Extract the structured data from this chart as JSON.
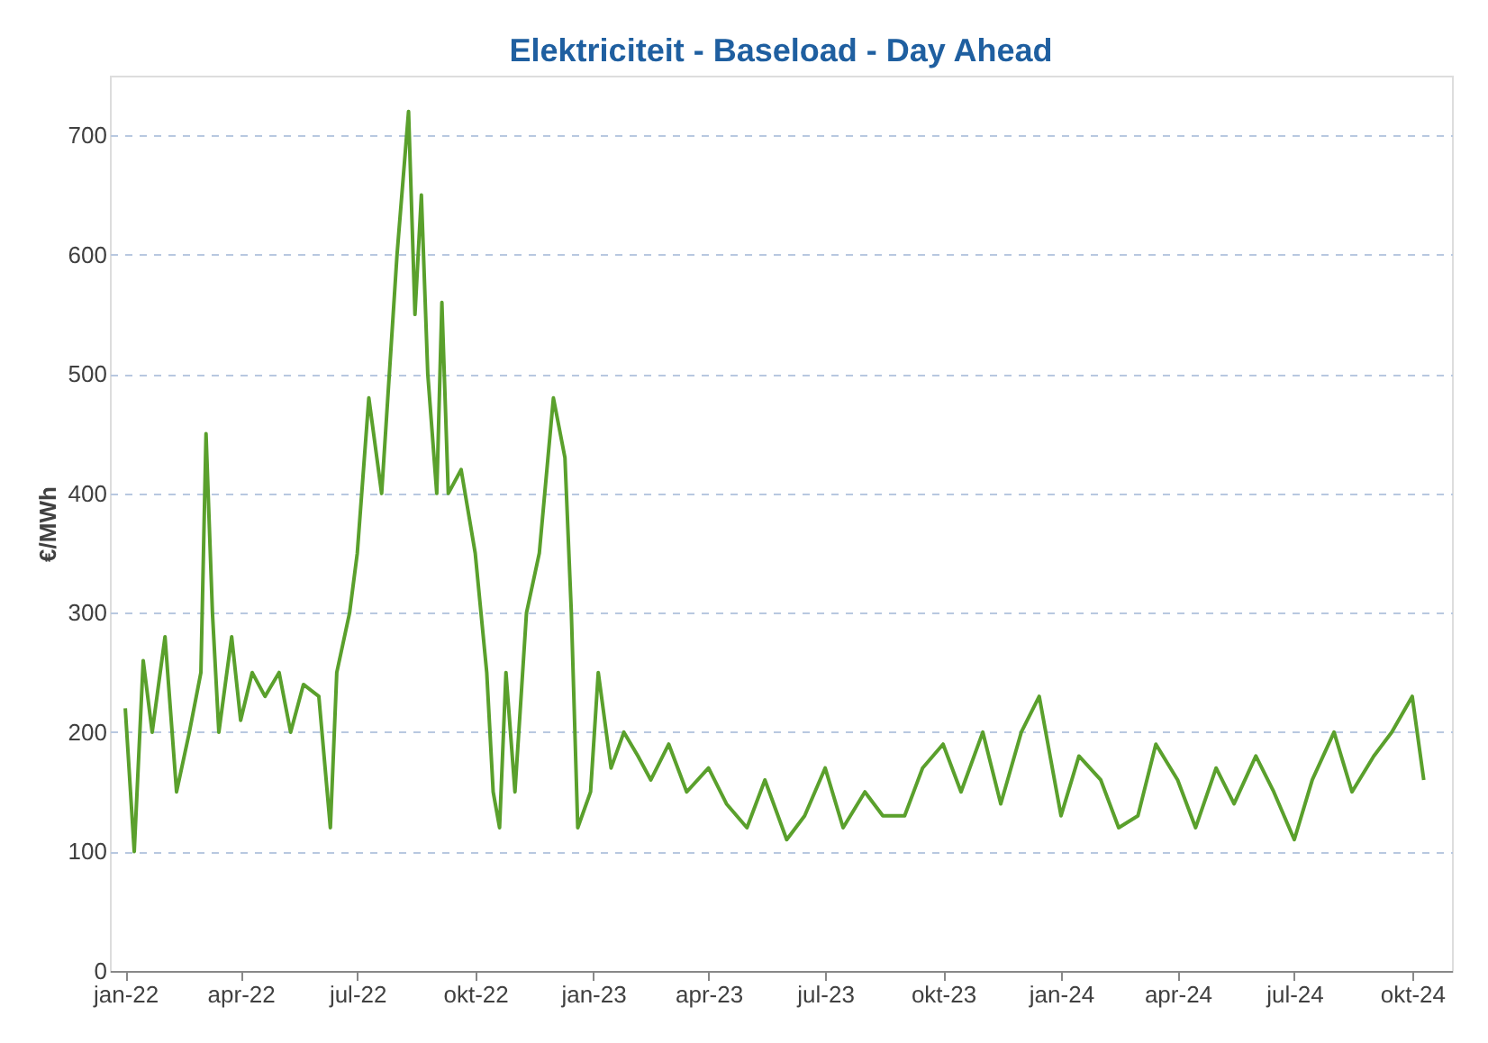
{
  "chart_data": {
    "type": "line",
    "title": "Elektriciteit - Baseload - Day Ahead",
    "ylabel": "€/MWh",
    "grid": "y",
    "marker": "none",
    "line_style": "solid",
    "ylim": [
      0,
      750
    ],
    "yticks": [
      0,
      100,
      200,
      300,
      400,
      500,
      600,
      700
    ],
    "xlim": [
      "2021-12-20",
      "2024-11-01"
    ],
    "xticks": [
      {
        "value": "2022-01-01",
        "label": "jan-22"
      },
      {
        "value": "2022-04-01",
        "label": "apr-22"
      },
      {
        "value": "2022-07-01",
        "label": "jul-22"
      },
      {
        "value": "2022-10-01",
        "label": "okt-22"
      },
      {
        "value": "2023-01-01",
        "label": "jan-23"
      },
      {
        "value": "2023-04-01",
        "label": "apr-23"
      },
      {
        "value": "2023-07-01",
        "label": "jul-23"
      },
      {
        "value": "2023-10-01",
        "label": "okt-23"
      },
      {
        "value": "2024-01-01",
        "label": "jan-24"
      },
      {
        "value": "2024-04-01",
        "label": "apr-24"
      },
      {
        "value": "2024-07-01",
        "label": "jul-24"
      },
      {
        "value": "2024-10-01",
        "label": "okt-24"
      }
    ],
    "x": [
      "2022-01-01",
      "2022-01-08",
      "2022-01-15",
      "2022-01-22",
      "2022-02-01",
      "2022-02-10",
      "2022-02-20",
      "2022-03-01",
      "2022-03-05",
      "2022-03-10",
      "2022-03-15",
      "2022-03-25",
      "2022-04-01",
      "2022-04-10",
      "2022-04-20",
      "2022-05-01",
      "2022-05-10",
      "2022-05-20",
      "2022-06-01",
      "2022-06-10",
      "2022-06-15",
      "2022-06-25",
      "2022-07-01",
      "2022-07-10",
      "2022-07-20",
      "2022-08-01",
      "2022-08-10",
      "2022-08-15",
      "2022-08-20",
      "2022-08-25",
      "2022-09-01",
      "2022-09-05",
      "2022-09-10",
      "2022-09-20",
      "2022-10-01",
      "2022-10-10",
      "2022-10-15",
      "2022-10-20",
      "2022-10-25",
      "2022-11-01",
      "2022-11-10",
      "2022-11-20",
      "2022-12-01",
      "2022-12-10",
      "2022-12-15",
      "2022-12-20",
      "2022-12-30",
      "2023-01-05",
      "2023-01-15",
      "2023-01-25",
      "2023-02-05",
      "2023-02-15",
      "2023-03-01",
      "2023-03-15",
      "2023-04-01",
      "2023-04-15",
      "2023-05-01",
      "2023-05-15",
      "2023-06-01",
      "2023-06-15",
      "2023-07-01",
      "2023-07-15",
      "2023-08-01",
      "2023-08-15",
      "2023-09-01",
      "2023-09-15",
      "2023-10-01",
      "2023-10-15",
      "2023-11-01",
      "2023-11-15",
      "2023-12-01",
      "2023-12-15",
      "2024-01-01",
      "2024-01-15",
      "2024-02-01",
      "2024-02-15",
      "2024-03-01",
      "2024-03-15",
      "2024-04-01",
      "2024-04-15",
      "2024-05-01",
      "2024-05-15",
      "2024-06-01",
      "2024-06-15",
      "2024-07-01",
      "2024-07-15",
      "2024-08-01",
      "2024-08-15",
      "2024-09-01",
      "2024-09-15",
      "2024-10-01",
      "2024-10-10"
    ],
    "series": [
      {
        "color": "#5aa02c",
        "values": [
          220,
          100,
          260,
          200,
          280,
          150,
          200,
          250,
          450,
          300,
          200,
          280,
          210,
          250,
          230,
          250,
          200,
          240,
          230,
          120,
          250,
          300,
          350,
          480,
          400,
          600,
          720,
          550,
          650,
          500,
          400,
          560,
          400,
          420,
          350,
          250,
          150,
          120,
          250,
          150,
          300,
          350,
          480,
          430,
          300,
          120,
          150,
          250,
          170,
          200,
          180,
          160,
          190,
          150,
          170,
          140,
          120,
          160,
          110,
          130,
          170,
          120,
          150,
          130,
          130,
          170,
          190,
          150,
          200,
          140,
          200,
          230,
          130,
          180,
          160,
          120,
          130,
          190,
          160,
          120,
          170,
          140,
          180,
          150,
          110,
          160,
          200,
          150,
          180,
          200,
          230,
          160
        ]
      }
    ]
  }
}
